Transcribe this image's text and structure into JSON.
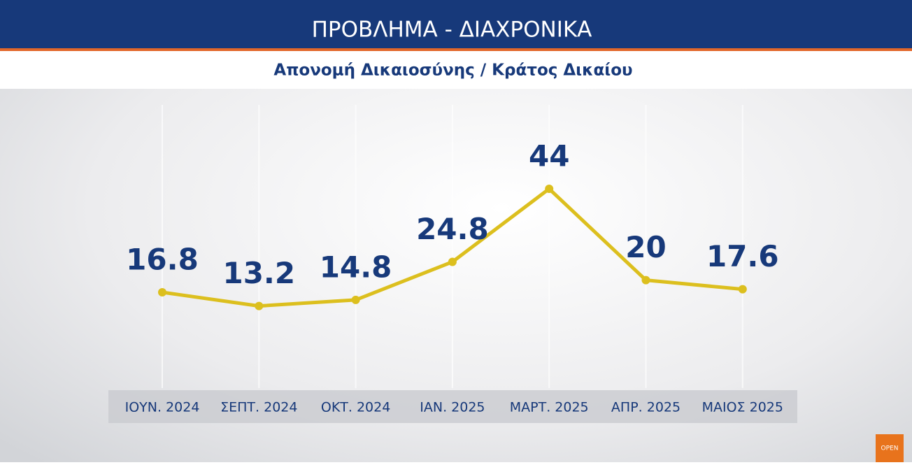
{
  "chart_data": {
    "type": "line",
    "title": "ΠΡΟΒΛΗΜΑ - ΔΙΑΧΡΟΝΙΚΑ",
    "subtitle": "Απονομή Δικαιοσύνης / Κράτος Δικαίου",
    "categories": [
      "ΙΟΥΝ. 2024",
      "ΣΕΠΤ. 2024",
      "ΟΚΤ. 2024",
      "ΙΑΝ. 2025",
      "ΜΑΡΤ. 2025",
      "ΑΠΡ. 2025",
      "ΜΑΙΟΣ 2025"
    ],
    "values": [
      16.8,
      13.2,
      14.8,
      24.8,
      44,
      20,
      17.6
    ],
    "color": "#dcbf1e",
    "logo": "OPEN"
  }
}
